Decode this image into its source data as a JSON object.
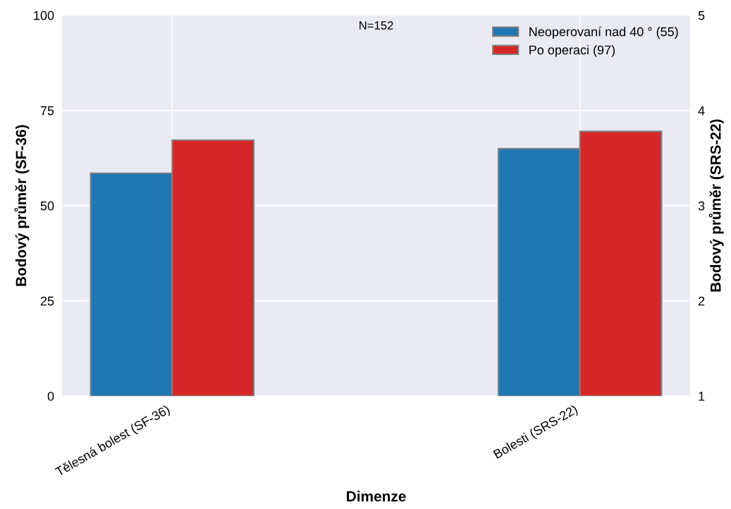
{
  "chart_data": {
    "type": "bar",
    "xlabel": "Dimenze",
    "ylabel": "Bodový průměr (SF-36)",
    "y2label": "Bodový průměr (SRS-22)",
    "categories": [
      "Tělesná bolest (SF-36)",
      "Bolesti (SRS-22)"
    ],
    "series": [
      {
        "name": "Neoperovaní nad 40 ° (55)",
        "color": "#1f77b4",
        "values": [
          58.5,
          null
        ]
      },
      {
        "name": "Po operaci (97)",
        "color": "#d62728",
        "values": [
          67.2,
          null
        ]
      },
      {
        "color": "#1f77b4",
        "values": [
          null,
          3.6
        ],
        "axis": "y2"
      },
      {
        "color": "#d62728",
        "values": [
          null,
          3.78
        ],
        "axis": "y2"
      }
    ],
    "ylim": [
      0,
      100
    ],
    "yticks": [
      0,
      25,
      50,
      75,
      100
    ],
    "y2lim": [
      1,
      5
    ],
    "y2ticks": [
      1,
      2,
      3,
      4,
      5
    ],
    "annotations": [
      "N=152"
    ],
    "grid": true,
    "legend": "top right"
  }
}
